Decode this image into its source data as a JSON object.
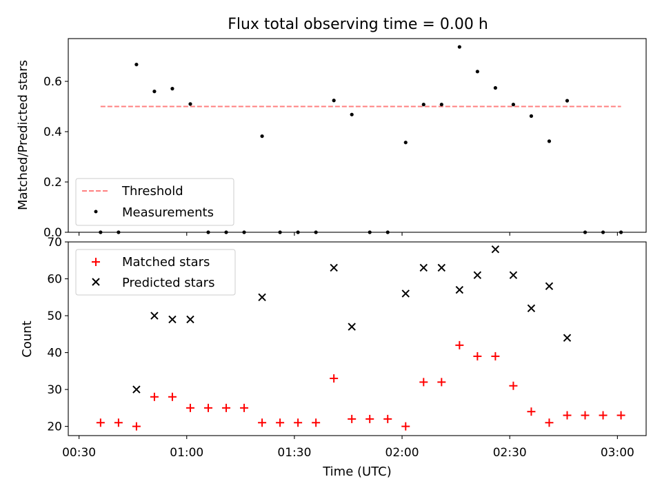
{
  "chart_data": [
    {
      "type": "scatter",
      "title": "Flux total observing time = 0.00 h",
      "ylabel": "Matched/Predicted stars",
      "xlim": [
        "00:27",
        "03:08"
      ],
      "ylim": [
        0,
        0.77
      ],
      "yticks": [
        "0.0",
        "0.2",
        "0.4",
        "0.6"
      ],
      "legend_position": "lower-left",
      "threshold": {
        "name": "Threshold",
        "value": 0.5,
        "x_range": [
          "00:36",
          "03:01"
        ],
        "color": "#ff7f7f",
        "style": "dashed"
      },
      "series": [
        {
          "name": "Measurements",
          "marker": "dot",
          "color": "#000000",
          "x": [
            "00:36",
            "00:41",
            "00:46",
            "00:51",
            "00:56",
            "01:01",
            "01:06",
            "01:11",
            "01:16",
            "01:21",
            "01:26",
            "01:31",
            "01:36",
            "01:41",
            "01:46",
            "01:51",
            "01:56",
            "02:01",
            "02:06",
            "02:11",
            "02:16",
            "02:21",
            "02:26",
            "02:31",
            "02:36",
            "02:41",
            "02:46",
            "02:51",
            "02:56",
            "03:01"
          ],
          "y": [
            0,
            0,
            0.667,
            0.56,
            0.571,
            0.51,
            0,
            0,
            0,
            0.382,
            0,
            0,
            0,
            0.524,
            0.468,
            0,
            0,
            0.357,
            0.508,
            0.508,
            0.737,
            0.639,
            0.574,
            0.508,
            0.462,
            0.362,
            0.523,
            0,
            0,
            0
          ]
        }
      ]
    },
    {
      "type": "scatter",
      "xlabel": "Time (UTC)",
      "ylabel": "Count",
      "xlim": [
        "00:27",
        "03:08"
      ],
      "ylim": [
        17.5,
        70
      ],
      "xticks": [
        "00:30",
        "01:00",
        "01:30",
        "02:00",
        "02:30",
        "03:00"
      ],
      "yticks": [
        "20",
        "30",
        "40",
        "50",
        "60",
        "70"
      ],
      "legend_position": "upper-left",
      "series": [
        {
          "name": "Matched stars",
          "marker": "plus",
          "color": "#ff0000",
          "x": [
            "00:36",
            "00:41",
            "00:46",
            "00:51",
            "00:56",
            "01:01",
            "01:06",
            "01:11",
            "01:16",
            "01:21",
            "01:26",
            "01:31",
            "01:36",
            "01:41",
            "01:46",
            "01:51",
            "01:56",
            "02:01",
            "02:06",
            "02:11",
            "02:16",
            "02:21",
            "02:26",
            "02:31",
            "02:36",
            "02:41",
            "02:46",
            "02:51",
            "02:56",
            "03:01"
          ],
          "y": [
            21,
            21,
            20,
            28,
            28,
            25,
            25,
            25,
            25,
            21,
            21,
            21,
            21,
            33,
            22,
            22,
            22,
            20,
            32,
            32,
            42,
            39,
            39,
            31,
            24,
            21,
            23,
            23,
            23,
            23
          ]
        },
        {
          "name": "Predicted stars",
          "marker": "x",
          "color": "#000000",
          "x": [
            "00:46",
            "00:51",
            "00:56",
            "01:01",
            "01:21",
            "01:41",
            "01:46",
            "02:01",
            "02:06",
            "02:11",
            "02:16",
            "02:21",
            "02:26",
            "02:31",
            "02:36",
            "02:41",
            "02:46"
          ],
          "y": [
            30,
            50,
            49,
            49,
            55,
            63,
            47,
            56,
            63,
            63,
            57,
            61,
            68,
            61,
            52,
            58,
            44
          ]
        }
      ]
    }
  ]
}
